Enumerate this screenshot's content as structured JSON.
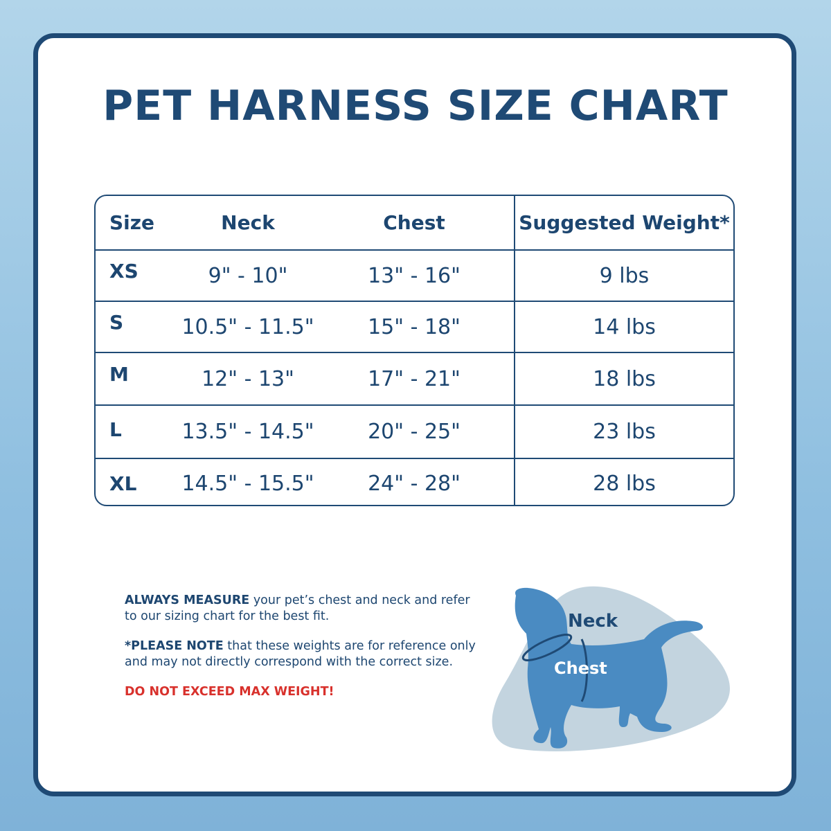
{
  "title": "PET HARNESS SIZE CHART",
  "table": {
    "headers": [
      "Size",
      "Neck",
      "Chest",
      "Suggested Weight*"
    ],
    "rows": [
      {
        "size": "XS",
        "neck": "9\" - 10\"",
        "chest": "13\" - 16\"",
        "weight": "9 lbs"
      },
      {
        "size": "S",
        "neck": "10.5\" - 11.5\"",
        "chest": "15\" - 18\"",
        "weight": "14 lbs"
      },
      {
        "size": "M",
        "neck": "12\" - 13\"",
        "chest": "17\" - 21\"",
        "weight": "18 lbs"
      },
      {
        "size": "L",
        "neck": "13.5\" - 14.5\"",
        "chest": "20\" - 25\"",
        "weight": "23 lbs"
      },
      {
        "size": "XL",
        "neck": "14.5\" - 15.5\"",
        "chest": "24\" - 28\"",
        "weight": "28 lbs"
      }
    ]
  },
  "notes": {
    "measure_bold": "ALWAYS MEASURE",
    "measure_text": " your pet’s chest and neck and refer to our sizing chart for the best fit.",
    "note_bold": "*PLEASE NOTE",
    "note_text": " that these weights are for reference only and may not directly correspond with the correct size.",
    "warning": "DO NOT EXCEED MAX WEIGHT!"
  },
  "illustration": {
    "neck_label": "Neck",
    "chest_label": "Chest"
  },
  "colors": {
    "navy": "#1f4a75",
    "warning": "#d8312c",
    "dog": "#4a8bc2",
    "blob": "#c3d4df"
  }
}
